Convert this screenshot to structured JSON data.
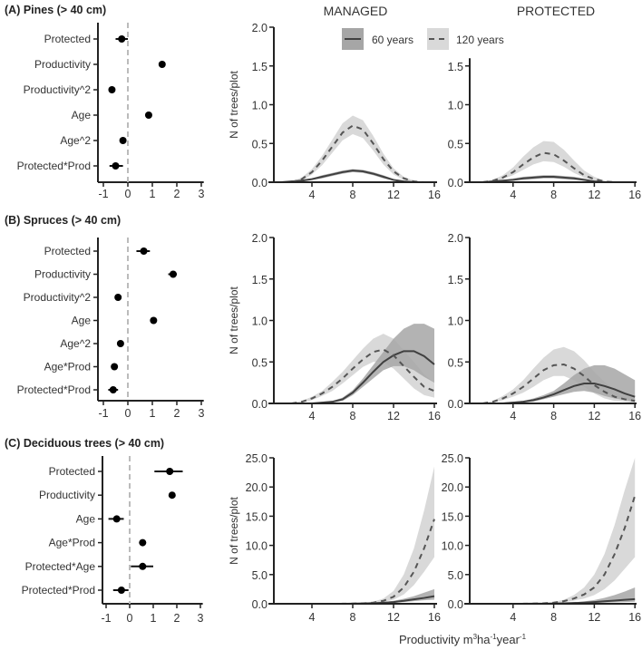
{
  "column_titles": [
    "MANAGED",
    "PROTECTED"
  ],
  "legend": [
    {
      "label": "60 years",
      "style": "solid",
      "band_color": "#a6a6a6"
    },
    {
      "label": "120 years",
      "style": "dashed",
      "band_color": "#d9d9d9"
    }
  ],
  "x_axis_label": {
    "main": "Productivity m",
    "sup1": "3",
    "mid1": "ha",
    "sup2": "-1",
    "mid2": "year",
    "sup3": "-1"
  },
  "chart_data": [
    {
      "type": "forest",
      "panel": "A",
      "title": "(A) Pines (> 40 cm)",
      "xticks": [
        "-1",
        "0",
        "1",
        "2",
        "3"
      ],
      "reference_line": 0,
      "terms": [
        {
          "label": "Protected",
          "estimate": -0.25,
          "ci": [
            -0.5,
            0.0
          ]
        },
        {
          "label": "Productivity",
          "estimate": 1.4,
          "ci": [
            1.3,
            1.5
          ]
        },
        {
          "label": "Productivity^2",
          "estimate": -0.65,
          "ci": [
            -0.72,
            -0.58
          ]
        },
        {
          "label": "Age",
          "estimate": 0.85,
          "ci": [
            0.78,
            0.92
          ]
        },
        {
          "label": "Age^2",
          "estimate": -0.2,
          "ci": [
            -0.27,
            -0.13
          ]
        },
        {
          "label": "Protected*Prod",
          "estimate": -0.5,
          "ci": [
            -0.75,
            -0.2
          ]
        }
      ]
    },
    {
      "type": "forest",
      "panel": "B",
      "title": "(B) Spruces (> 40 cm)",
      "xticks": [
        "-1",
        "0",
        "1",
        "2",
        "3"
      ],
      "reference_line": 0,
      "terms": [
        {
          "label": "Protected",
          "estimate": 0.65,
          "ci": [
            0.35,
            0.9
          ]
        },
        {
          "label": "Productivity",
          "estimate": 1.85,
          "ci": [
            1.65,
            2.0
          ]
        },
        {
          "label": "Productivity^2",
          "estimate": -0.4,
          "ci": [
            -0.47,
            -0.33
          ]
        },
        {
          "label": "Age",
          "estimate": 1.05,
          "ci": [
            0.97,
            1.13
          ]
        },
        {
          "label": "Age^2",
          "estimate": -0.3,
          "ci": [
            -0.37,
            -0.23
          ]
        },
        {
          "label": "Age*Prod",
          "estimate": -0.55,
          "ci": [
            -0.62,
            -0.48
          ]
        },
        {
          "label": "Protected*Prod",
          "estimate": -0.6,
          "ci": [
            -0.8,
            -0.4
          ]
        }
      ]
    },
    {
      "type": "forest",
      "panel": "C",
      "title": "(C) Deciduous trees (> 40 cm)",
      "xticks": [
        "-1",
        "0",
        "1",
        "2",
        "3"
      ],
      "reference_line": 0,
      "terms": [
        {
          "label": "Protected",
          "estimate": 1.7,
          "ci": [
            1.05,
            2.25
          ]
        },
        {
          "label": "Productivity",
          "estimate": 1.8,
          "ci": [
            1.7,
            1.9
          ]
        },
        {
          "label": "Age",
          "estimate": -0.55,
          "ci": [
            -0.9,
            -0.25
          ]
        },
        {
          "label": "Age*Prod",
          "estimate": 0.55,
          "ci": [
            0.47,
            0.63
          ]
        },
        {
          "label": "Protected*Age",
          "estimate": 0.55,
          "ci": [
            0.05,
            1.0
          ]
        },
        {
          "label": "Protected*Prod",
          "estimate": -0.35,
          "ci": [
            -0.7,
            -0.05
          ]
        }
      ]
    },
    {
      "type": "line",
      "panel": "A",
      "column": "MANAGED",
      "ylabel": "N of trees/plot",
      "ylim": [
        0,
        2.0
      ],
      "yticks": [
        0,
        0.5,
        1.0,
        1.5,
        2.0
      ],
      "ytick_labels": [
        "0.0",
        "0.5",
        "1.0",
        "1.5",
        "2.0"
      ],
      "xticks": [
        4,
        8,
        12,
        16
      ],
      "xtick_labels": [
        "4",
        "8",
        "12",
        "16"
      ],
      "x": [
        1,
        2,
        3,
        4,
        5,
        6,
        7,
        8,
        9,
        10,
        11,
        12,
        13,
        14,
        15,
        16
      ],
      "series": [
        {
          "name": "60 years",
          "mean": [
            0,
            0.01,
            0.02,
            0.04,
            0.07,
            0.1,
            0.13,
            0.15,
            0.14,
            0.11,
            0.07,
            0.03,
            0.01,
            0,
            0,
            0
          ],
          "lo": [
            0,
            0,
            0.01,
            0.03,
            0.05,
            0.08,
            0.11,
            0.13,
            0.12,
            0.09,
            0.05,
            0.02,
            0,
            0,
            0,
            0
          ],
          "hi": [
            0,
            0.02,
            0.03,
            0.05,
            0.09,
            0.12,
            0.15,
            0.17,
            0.16,
            0.13,
            0.09,
            0.04,
            0.02,
            0,
            0,
            0
          ]
        },
        {
          "name": "120 years",
          "mean": [
            0,
            0,
            0.04,
            0.13,
            0.28,
            0.46,
            0.64,
            0.73,
            0.68,
            0.5,
            0.3,
            0.14,
            0.05,
            0.01,
            0,
            0
          ],
          "lo": [
            0,
            0,
            0.02,
            0.1,
            0.22,
            0.38,
            0.54,
            0.62,
            0.57,
            0.41,
            0.23,
            0.1,
            0.03,
            0,
            0,
            0
          ],
          "hi": [
            0,
            0.01,
            0.06,
            0.17,
            0.34,
            0.55,
            0.76,
            0.86,
            0.8,
            0.6,
            0.37,
            0.18,
            0.07,
            0.02,
            0,
            0
          ]
        }
      ]
    },
    {
      "type": "line",
      "panel": "A",
      "column": "PROTECTED",
      "ylabel": "",
      "ylim": [
        0,
        1.6
      ],
      "yticks": [
        0,
        0.5,
        1.0,
        1.5
      ],
      "ytick_labels": [
        "0.0",
        "0.5",
        "1.0",
        "1.5"
      ],
      "xticks": [
        4,
        8,
        12,
        16
      ],
      "xtick_labels": [
        "4",
        "8",
        "12",
        "16"
      ],
      "x": [
        1,
        2,
        3,
        4,
        5,
        6,
        7,
        8,
        9,
        10,
        11,
        12,
        13,
        14,
        15,
        16
      ],
      "series": [
        {
          "name": "60 years",
          "mean": [
            0,
            0.01,
            0.02,
            0.03,
            0.05,
            0.06,
            0.07,
            0.07,
            0.06,
            0.05,
            0.03,
            0.01,
            0,
            0,
            0,
            0
          ],
          "lo": [
            0,
            0,
            0.01,
            0.02,
            0.03,
            0.04,
            0.05,
            0.05,
            0.04,
            0.03,
            0.02,
            0,
            0,
            0,
            0,
            0
          ],
          "hi": [
            0,
            0.01,
            0.03,
            0.05,
            0.07,
            0.08,
            0.09,
            0.09,
            0.08,
            0.07,
            0.05,
            0.02,
            0.01,
            0,
            0,
            0
          ]
        },
        {
          "name": "120 years",
          "mean": [
            0,
            0.02,
            0.06,
            0.13,
            0.23,
            0.32,
            0.38,
            0.36,
            0.28,
            0.18,
            0.09,
            0.04,
            0.01,
            0,
            0,
            0
          ],
          "lo": [
            0,
            0.01,
            0.04,
            0.09,
            0.16,
            0.23,
            0.27,
            0.26,
            0.2,
            0.12,
            0.06,
            0.02,
            0,
            0,
            0,
            0
          ],
          "hi": [
            0,
            0.03,
            0.09,
            0.19,
            0.33,
            0.45,
            0.53,
            0.52,
            0.42,
            0.28,
            0.15,
            0.07,
            0.02,
            0,
            0,
            0
          ]
        }
      ]
    },
    {
      "type": "line",
      "panel": "B",
      "column": "MANAGED",
      "ylabel": "N of trees/plot",
      "ylim": [
        0,
        2.0
      ],
      "yticks": [
        0,
        0.5,
        1.0,
        1.5,
        2.0
      ],
      "ytick_labels": [
        "0.0",
        "0.5",
        "1.0",
        "1.5",
        "2.0"
      ],
      "xticks": [
        4,
        8,
        12,
        16
      ],
      "xtick_labels": [
        "4",
        "8",
        "12",
        "16"
      ],
      "x": [
        1,
        2,
        3,
        4,
        5,
        6,
        7,
        8,
        9,
        10,
        11,
        12,
        13,
        14,
        15,
        16
      ],
      "series": [
        {
          "name": "60 years",
          "mean": [
            0,
            0,
            0,
            0,
            0.01,
            0.02,
            0.05,
            0.13,
            0.25,
            0.38,
            0.5,
            0.58,
            0.63,
            0.63,
            0.57,
            0.47
          ],
          "lo": [
            0,
            0,
            0,
            0,
            0,
            0.01,
            0.03,
            0.1,
            0.2,
            0.3,
            0.4,
            0.45,
            0.45,
            0.4,
            0.32,
            0.25
          ],
          "hi": [
            0,
            0,
            0,
            0,
            0.02,
            0.03,
            0.07,
            0.16,
            0.3,
            0.46,
            0.62,
            0.78,
            0.9,
            0.96,
            0.96,
            0.9
          ]
        },
        {
          "name": "120 years",
          "mean": [
            0,
            0,
            0.02,
            0.06,
            0.12,
            0.2,
            0.3,
            0.42,
            0.53,
            0.62,
            0.65,
            0.58,
            0.45,
            0.32,
            0.2,
            0.15
          ],
          "lo": [
            0,
            0,
            0.01,
            0.04,
            0.09,
            0.15,
            0.24,
            0.34,
            0.44,
            0.5,
            0.5,
            0.42,
            0.3,
            0.18,
            0.1,
            0.07
          ],
          "hi": [
            0,
            0.01,
            0.03,
            0.08,
            0.15,
            0.26,
            0.38,
            0.52,
            0.66,
            0.78,
            0.84,
            0.78,
            0.64,
            0.5,
            0.35,
            0.25
          ]
        }
      ]
    },
    {
      "type": "line",
      "panel": "B",
      "column": "PROTECTED",
      "ylabel": "",
      "ylim": [
        0,
        2.0
      ],
      "yticks": [
        0,
        0.5,
        1.0,
        1.5,
        2.0
      ],
      "ytick_labels": [
        "0.0",
        "0.5",
        "1.0",
        "1.5",
        "2.0"
      ],
      "xticks": [
        4,
        8,
        12,
        16
      ],
      "xtick_labels": [
        "4",
        "8",
        "12",
        "16"
      ],
      "x": [
        1,
        2,
        3,
        4,
        5,
        6,
        7,
        8,
        9,
        10,
        11,
        12,
        13,
        14,
        15,
        16
      ],
      "series": [
        {
          "name": "60 years",
          "mean": [
            0,
            0,
            0,
            0.01,
            0.02,
            0.04,
            0.07,
            0.11,
            0.16,
            0.21,
            0.24,
            0.24,
            0.21,
            0.17,
            0.12,
            0.08
          ],
          "lo": [
            0,
            0,
            0,
            0,
            0.01,
            0.02,
            0.05,
            0.08,
            0.11,
            0.14,
            0.15,
            0.13,
            0.09,
            0.06,
            0.04,
            0.02
          ],
          "hi": [
            0,
            0,
            0.01,
            0.02,
            0.03,
            0.06,
            0.1,
            0.15,
            0.24,
            0.34,
            0.42,
            0.46,
            0.46,
            0.42,
            0.35,
            0.28
          ]
        },
        {
          "name": "120 years",
          "mean": [
            0,
            0.02,
            0.06,
            0.12,
            0.2,
            0.3,
            0.4,
            0.46,
            0.47,
            0.42,
            0.33,
            0.22,
            0.14,
            0.08,
            0.05,
            0.03
          ],
          "lo": [
            0,
            0.01,
            0.04,
            0.08,
            0.13,
            0.2,
            0.28,
            0.33,
            0.33,
            0.28,
            0.2,
            0.12,
            0.06,
            0.03,
            0.02,
            0.01
          ],
          "hi": [
            0,
            0.03,
            0.09,
            0.17,
            0.28,
            0.42,
            0.55,
            0.65,
            0.68,
            0.63,
            0.52,
            0.38,
            0.26,
            0.17,
            0.1,
            0.06
          ]
        }
      ]
    },
    {
      "type": "line",
      "panel": "C",
      "column": "MANAGED",
      "ylabel": "N of trees/plot",
      "ylim": [
        0,
        25.0
      ],
      "yticks": [
        0,
        5,
        10,
        15,
        20,
        25
      ],
      "ytick_labels": [
        "0.0",
        "5.0",
        "10.0",
        "15.0",
        "20.0",
        "25.0"
      ],
      "xticks": [
        4,
        8,
        12,
        16
      ],
      "xtick_labels": [
        "4",
        "8",
        "12",
        "16"
      ],
      "x": [
        1,
        2,
        3,
        4,
        5,
        6,
        7,
        8,
        9,
        10,
        11,
        12,
        13,
        14,
        15,
        16
      ],
      "series": [
        {
          "name": "60 years",
          "mean": [
            0,
            0,
            0,
            0,
            0,
            0,
            0,
            0.02,
            0.05,
            0.1,
            0.18,
            0.3,
            0.5,
            0.75,
            1.0,
            1.3
          ],
          "lo": [
            0,
            0,
            0,
            0,
            0,
            0,
            0,
            0.01,
            0.03,
            0.06,
            0.1,
            0.18,
            0.3,
            0.45,
            0.6,
            0.7
          ],
          "hi": [
            0,
            0,
            0,
            0,
            0,
            0,
            0.01,
            0.04,
            0.08,
            0.15,
            0.28,
            0.5,
            0.85,
            1.3,
            1.9,
            2.5
          ]
        },
        {
          "name": "120 years",
          "mean": [
            0,
            0,
            0,
            0,
            0,
            0,
            0.01,
            0.03,
            0.08,
            0.2,
            0.5,
            1.2,
            2.8,
            5.5,
            9.5,
            14.5
          ],
          "lo": [
            0,
            0,
            0,
            0,
            0,
            0,
            0,
            0.02,
            0.05,
            0.12,
            0.3,
            0.7,
            1.6,
            3.2,
            5.5,
            8.0
          ],
          "hi": [
            0,
            0,
            0,
            0,
            0,
            0.01,
            0.02,
            0.05,
            0.12,
            0.35,
            0.9,
            2.2,
            5.0,
            9.5,
            16.0,
            23.5
          ]
        }
      ]
    },
    {
      "type": "line",
      "panel": "C",
      "column": "PROTECTED",
      "ylabel": "",
      "ylim": [
        0,
        25.0
      ],
      "yticks": [
        0,
        5,
        10,
        15,
        20,
        25
      ],
      "ytick_labels": [
        "0.0",
        "5.0",
        "10.0",
        "15.0",
        "20.0",
        "25.0"
      ],
      "xticks": [
        4,
        8,
        12,
        16
      ],
      "xtick_labels": [
        "4",
        "8",
        "12",
        "16"
      ],
      "x": [
        1,
        2,
        3,
        4,
        5,
        6,
        7,
        8,
        9,
        10,
        11,
        12,
        13,
        14,
        15,
        16
      ],
      "series": [
        {
          "name": "60 years",
          "mean": [
            0,
            0,
            0,
            0,
            0,
            0.01,
            0.02,
            0.04,
            0.08,
            0.13,
            0.2,
            0.3,
            0.42,
            0.55,
            0.68,
            0.8
          ],
          "lo": [
            0,
            0,
            0,
            0,
            0,
            0,
            0.01,
            0.02,
            0.04,
            0.07,
            0.1,
            0.15,
            0.2,
            0.25,
            0.3,
            0.35
          ],
          "hi": [
            0,
            0,
            0,
            0,
            0,
            0.02,
            0.04,
            0.08,
            0.15,
            0.25,
            0.4,
            0.65,
            1.0,
            1.5,
            2.1,
            2.8
          ]
        },
        {
          "name": "120 years",
          "mean": [
            0,
            0,
            0,
            0,
            0.01,
            0.03,
            0.08,
            0.2,
            0.45,
            0.9,
            1.6,
            2.8,
            5.0,
            8.5,
            13.0,
            18.5
          ],
          "lo": [
            0,
            0,
            0,
            0,
            0,
            0.02,
            0.05,
            0.12,
            0.3,
            0.55,
            0.9,
            1.5,
            2.5,
            4.0,
            6.0,
            8.0
          ],
          "hi": [
            0,
            0,
            0,
            0,
            0.02,
            0.05,
            0.12,
            0.3,
            0.7,
            1.5,
            2.8,
            5.0,
            8.5,
            13.5,
            19.5,
            25.0
          ]
        }
      ]
    }
  ]
}
